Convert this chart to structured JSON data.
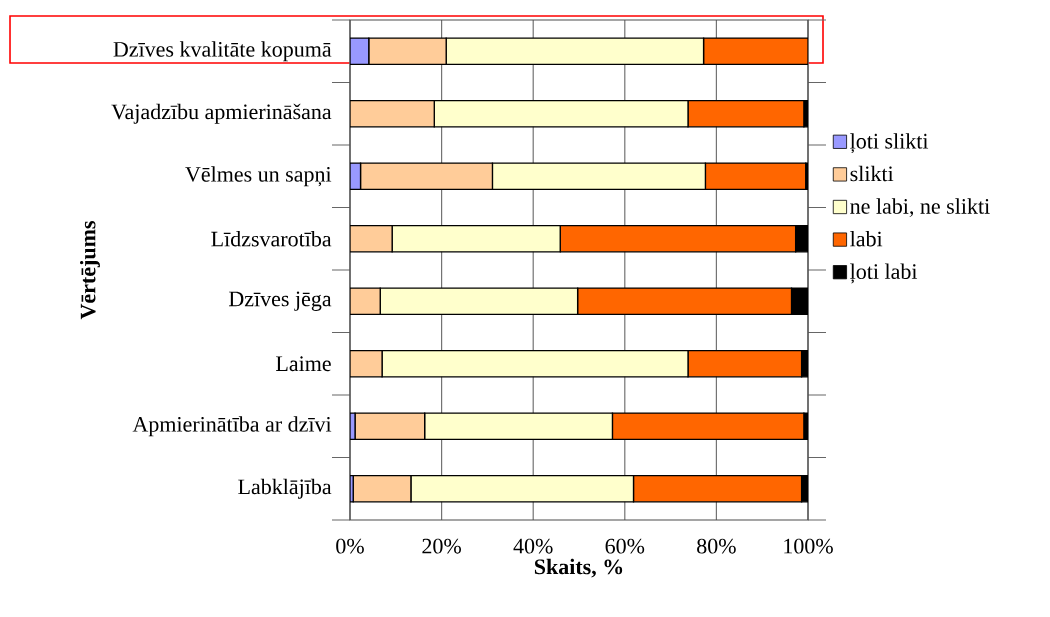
{
  "chart_data": {
    "type": "bar",
    "orientation": "horizontal",
    "stacked": true,
    "xlabel": "Skaits, %",
    "ylabel": "Vērtējums",
    "categories": [
      "Dzīves kvalitāte kopumā",
      "Vajadzību apmierināšana",
      "Vēlmes un sapņi",
      "Līdzsvarotība",
      "Dzīves jēga",
      "Laime",
      "Apmierinātība ar dzīvi",
      "Labklājība"
    ],
    "series": [
      {
        "name": "ļoti slikti",
        "color": "#9999ff",
        "values": [
          4.1,
          0,
          2.3,
          null,
          0,
          0,
          1.1,
          0.7
        ]
      },
      {
        "name": "slikti",
        "color": "#ffcc99",
        "values": [
          16.9,
          18.4,
          28.8,
          9.2,
          6.6,
          7.0,
          15.2,
          12.6
        ]
      },
      {
        "name": "ne labi, ne slikti",
        "color": "#ffffcc",
        "values": [
          56.2,
          55.4,
          46.5,
          36.7,
          43.1,
          66.8,
          41.0,
          48.6
        ]
      },
      {
        "name": "labi",
        "color": "#ff6600",
        "values": [
          22.8,
          25.3,
          21.9,
          51.4,
          46.7,
          24.8,
          41.8,
          36.7
        ]
      },
      {
        "name": "ļoti labi",
        "color": "#000000",
        "values": [
          0,
          0.9,
          0.5,
          2.7,
          3.6,
          1.4,
          0.9,
          1.4
        ]
      }
    ],
    "xlim": [
      0,
      100
    ],
    "xticks": [
      {
        "value": 0,
        "label": "0%"
      },
      {
        "value": 20,
        "label": "20%"
      },
      {
        "value": 40,
        "label": "40%"
      },
      {
        "value": 60,
        "label": "60%"
      },
      {
        "value": 80,
        "label": "80%"
      },
      {
        "value": 100,
        "label": "100%"
      }
    ],
    "grid": "x",
    "legend": "right"
  }
}
